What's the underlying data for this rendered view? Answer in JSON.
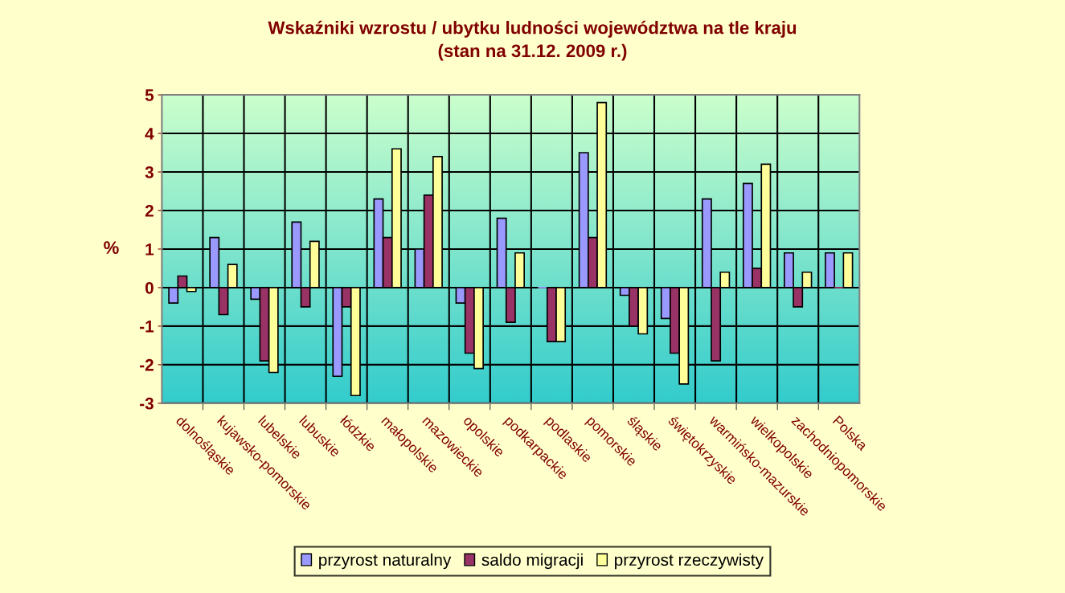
{
  "chart_data": {
    "type": "bar",
    "title": "Wskaźniki wzrostu / ubytku ludności województwa na tle kraju\n(stan na 31.12. 2009 r.)",
    "ylabel": "%",
    "categories": [
      "dolnośląskie",
      "kujawsko-pomorskie",
      "lubelskie",
      "lubuskie",
      "łódzkie",
      "małopolskie",
      "mazowieckie",
      "opolskie",
      "podkarpackie",
      "podlaskie",
      "pomorskie",
      "śląskie",
      "świętokrzyskie",
      "warmińsko-mazurskie",
      "wielkopolskie",
      "zachodniopomorskie",
      "Polska"
    ],
    "series": [
      {
        "name": "przyrost naturalny",
        "color": "#9999ff",
        "values": [
          -0.4,
          1.3,
          -0.3,
          1.7,
          -2.3,
          2.3,
          1.0,
          -0.4,
          1.8,
          0.0,
          3.5,
          -0.2,
          -0.8,
          2.3,
          2.7,
          0.9,
          0.9
        ]
      },
      {
        "name": "saldo migracji",
        "color": "#993366",
        "values": [
          0.3,
          -0.7,
          -1.9,
          -0.5,
          -0.5,
          1.3,
          2.4,
          -1.7,
          -0.9,
          -1.4,
          1.3,
          -1.0,
          -1.7,
          -1.9,
          0.5,
          -0.5,
          0.0
        ]
      },
      {
        "name": "przyrost rzeczywisty",
        "color": "#ffff99",
        "values": [
          -0.1,
          0.6,
          -2.2,
          1.2,
          -2.8,
          3.6,
          3.4,
          -2.1,
          0.9,
          -1.4,
          4.8,
          -1.2,
          -2.5,
          0.4,
          3.2,
          0.4,
          0.9
        ]
      }
    ],
    "ylim": [
      -3,
      5
    ],
    "yticks": [
      -3,
      -2,
      -1,
      0,
      1,
      2,
      3,
      4,
      5
    ],
    "grid": true,
    "legend": "bottom"
  }
}
